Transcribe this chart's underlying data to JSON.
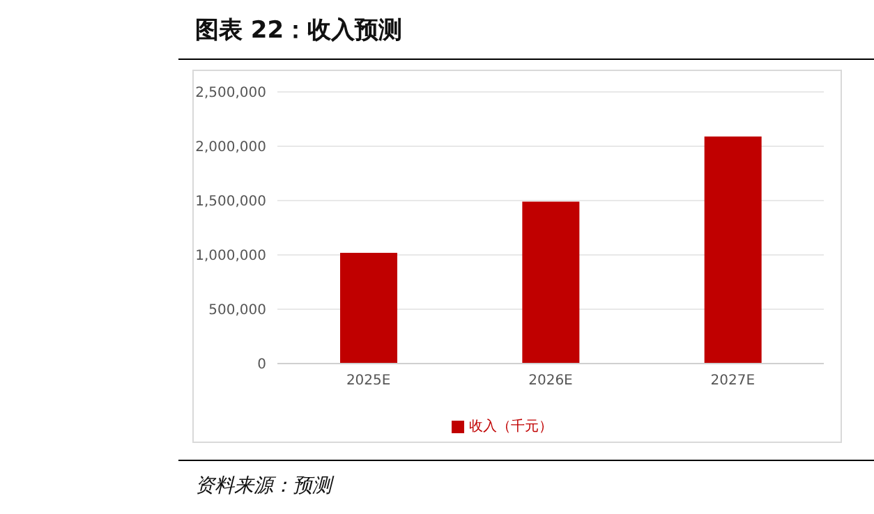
{
  "chart_data": {
    "type": "bar",
    "title": "图表 22：收入预测",
    "annotations": [
      "资料来源：预测"
    ],
    "categories": [
      "2025E",
      "2026E",
      "2027E"
    ],
    "series": [
      {
        "name": "收入（千元）",
        "color": "#c00000",
        "values": [
          1020000,
          1490000,
          2090000
        ]
      }
    ],
    "ylim": [
      0,
      2500000
    ],
    "yticks": [
      {
        "value": 0,
        "label": "0"
      },
      {
        "value": 500000,
        "label": "500,000"
      },
      {
        "value": 1000000,
        "label": "1,000,000"
      },
      {
        "value": 1500000,
        "label": "1,500,000"
      },
      {
        "value": 2000000,
        "label": "2,000,000"
      },
      {
        "value": 2500000,
        "label": "2,500,000"
      }
    ],
    "grid": "y",
    "legend": "bottom"
  }
}
